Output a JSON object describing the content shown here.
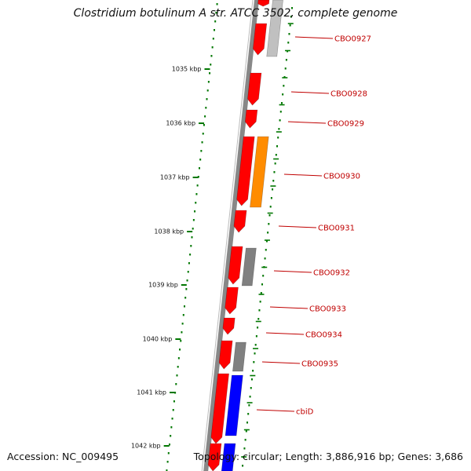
{
  "title": "Clostridium botulinum A str. ATCC 3502, complete genome",
  "footer": {
    "accession": "Accession: NC_009495",
    "summary": "Topology: circular; Length: 3,886,916 bp; Genes: 3,686"
  },
  "colors": {
    "forward_cds": "#ff0000",
    "reverse_cds": "#0000ff",
    "other_orange": "#ff8c00",
    "other_gray": "#808080",
    "other_lightgray": "#c0c0c0",
    "gene_label": "#c00000",
    "tick": "#007700",
    "backbone": "#888888"
  },
  "kbp_ticks": [
    "1035 kbp",
    "1036 kbp",
    "1037 kbp",
    "1038 kbp",
    "1039 kbp",
    "1040 kbp",
    "1041 kbp",
    "1042 kbp"
  ],
  "genes": [
    {
      "label": "CBO0927"
    },
    {
      "label": "CBO0928"
    },
    {
      "label": "CBO0929"
    },
    {
      "label": "CBO0930"
    },
    {
      "label": "CBO0931"
    },
    {
      "label": "CBO0932"
    },
    {
      "label": "CBO0933"
    },
    {
      "label": "CBO0934"
    },
    {
      "label": "CBO0935"
    },
    {
      "label": "cbiD"
    }
  ]
}
